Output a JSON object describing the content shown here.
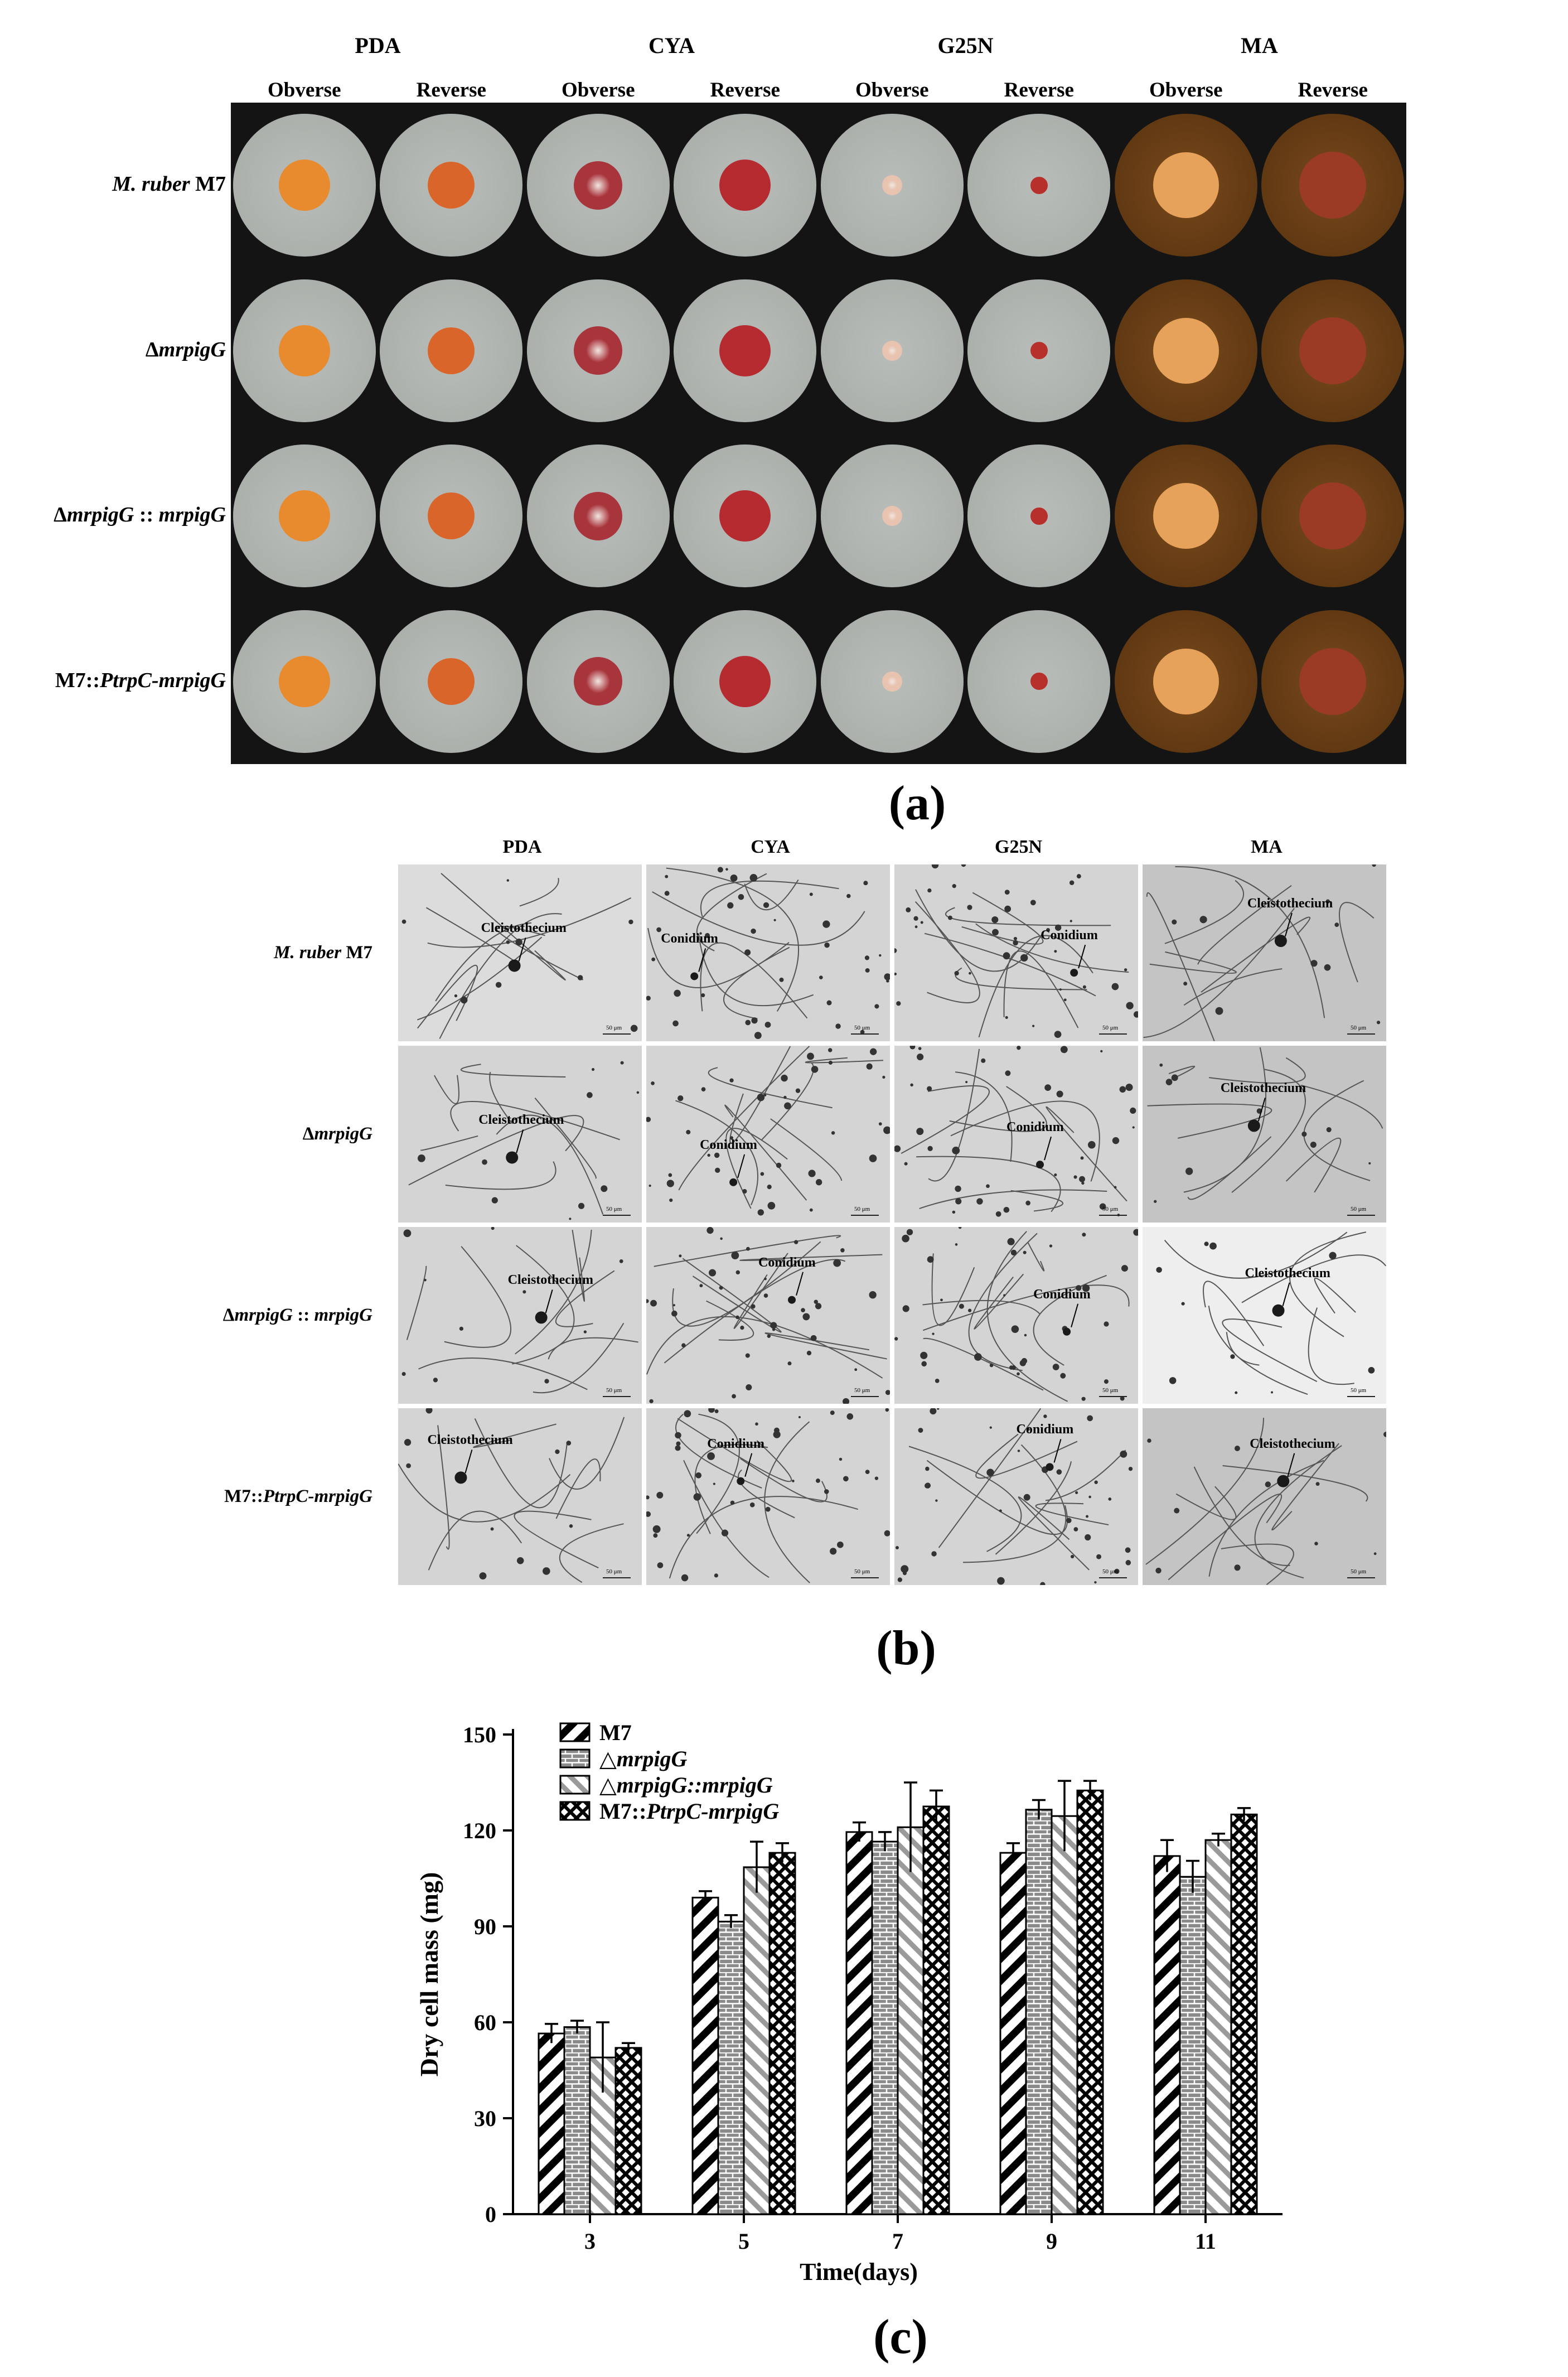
{
  "panel_a": {
    "media": [
      {
        "name": "PDA",
        "obverse": "Obverse",
        "reverse": "Reverse"
      },
      {
        "name": "CYA",
        "obverse": "Obverse",
        "reverse": "Reverse"
      },
      {
        "name": "G25N",
        "obverse": "Obverse",
        "reverse": "Reverse"
      },
      {
        "name": "MA",
        "obverse": "Obverse",
        "reverse": "Reverse"
      }
    ],
    "rows": [
      {
        "pre": "",
        "ital": "M. ruber",
        "post": " M7"
      },
      {
        "pre": "Δ",
        "ital": "mrpigG",
        "post": ""
      },
      {
        "pre": "Δ",
        "ital": "mrpigG",
        "post": " :: ",
        "ital2": "mrpigG"
      },
      {
        "pre": "M7::",
        "ital": "PtrpC-mrpigG",
        "post": ""
      }
    ],
    "label": "(a)"
  },
  "panel_b": {
    "media": [
      "PDA",
      "CYA",
      "G25N",
      "MA"
    ],
    "rows": [
      {
        "pre": "",
        "ital": "M. ruber",
        "post": " M7"
      },
      {
        "pre": "Δ",
        "ital": "mrpigG",
        "post": ""
      },
      {
        "pre": "Δ",
        "ital": "mrpigG",
        "post": " :: ",
        "ital2": "mrpigG"
      },
      {
        "pre": "M7::",
        "ital": "PtrpC-mrpigG",
        "post": ""
      }
    ],
    "annotations": [
      [
        "Cleistothecium",
        "Conidium",
        "Conidium",
        "Cleistothecium"
      ],
      [
        "Cleistothecium",
        "Conidium",
        "Conidium",
        "Cleistothecium"
      ],
      [
        "Cleistothecium",
        "Conidium",
        "Conidium",
        "Cleistothecium"
      ],
      [
        "Cleistothecium",
        "Conidium",
        "Conidium",
        "Cleistothecium"
      ]
    ],
    "scale_text": "50 μm",
    "label": "(b)"
  },
  "colors": {
    "pda_obverse": "#e88a2e",
    "pda_reverse": "#d9652a",
    "cya_obverse": "#a8343c",
    "cya_reverse": "#b52b30",
    "g25n_obverse": "#e8c3b0",
    "g25n_reverse": "#b8302c",
    "ma_obverse": "#e6a25a",
    "ma_reverse": "#9c3b25",
    "agar": "#b9bdb9",
    "ma_agar": "#7a4a1c"
  },
  "chart_data": {
    "type": "bar",
    "label": "(c)",
    "xlabel": "Time(days)",
    "ylabel": "Dry cell mass (mg)",
    "categories": [
      "3",
      "5",
      "7",
      "9",
      "11"
    ],
    "ylim": [
      0,
      150
    ],
    "yticks": [
      0,
      30,
      60,
      90,
      120,
      150
    ],
    "legend_position": "top-left",
    "series": [
      {
        "name": "M7",
        "pattern": "diagonal",
        "values": [
          56.5,
          99,
          119.5,
          113,
          112
        ],
        "errors": [
          3,
          2,
          3,
          3,
          5
        ]
      },
      {
        "name_pre": "△",
        "name": "mrpigG",
        "pattern": "brick",
        "values": [
          58.5,
          91.5,
          116.5,
          126.5,
          105.5
        ],
        "errors": [
          2,
          2,
          3,
          3,
          5
        ]
      },
      {
        "name_pre": "△",
        "name": "mrpigG::mrpigG",
        "pattern": "hatch",
        "values": [
          49,
          108.5,
          121,
          124.5,
          117
        ],
        "errors": [
          11,
          8,
          14,
          11,
          2
        ]
      },
      {
        "name_pre": "M7::",
        "name": "PtrpC-mrpigG",
        "pattern": "cross",
        "values": [
          52,
          113,
          127.5,
          132.5,
          125
        ],
        "errors": [
          1.5,
          3,
          5,
          3,
          2
        ]
      }
    ]
  }
}
